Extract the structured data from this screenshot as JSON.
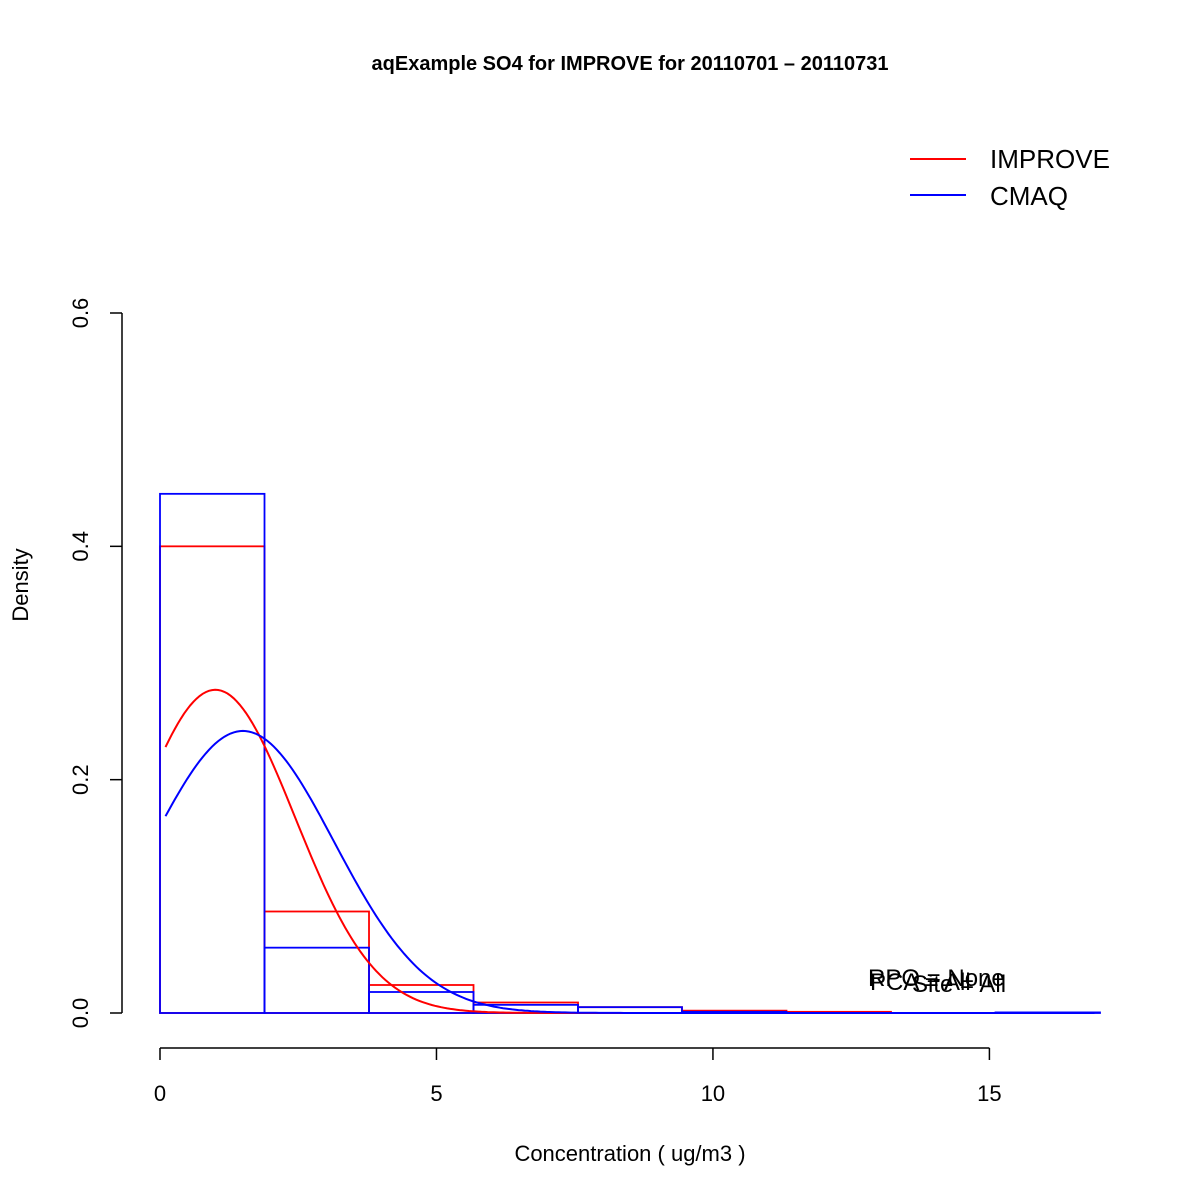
{
  "chart_data": {
    "type": "histogram",
    "title": "aqExample SO4 for IMPROVE for 20110701 – 20110731",
    "xlabel": "Concentration ( ug/m3 )",
    "ylabel": "Density",
    "xlim": [
      0,
      17
    ],
    "ylim": [
      0,
      0.6
    ],
    "x_ticks": [
      0,
      5,
      10,
      15
    ],
    "y_ticks": [
      0.0,
      0.2,
      0.4,
      0.6
    ],
    "x_tick_labels": [
      "0",
      "5",
      "10",
      "15"
    ],
    "y_tick_labels": [
      "0.0",
      "0.2",
      "0.4",
      "0.6"
    ],
    "grid": false,
    "legend": {
      "placement": "top-right",
      "entries": [
        {
          "label": "IMPROVE",
          "color": "#ff0000"
        },
        {
          "label": "CMAQ",
          "color": "#0000ff"
        }
      ]
    },
    "annotations": [
      "RPO = None",
      "PCA = All",
      "Site = All"
    ],
    "bin_edges": [
      0,
      1.89,
      3.78,
      5.67,
      7.56,
      9.44,
      11.33,
      13.22,
      15.11,
      17.0
    ],
    "series": [
      {
        "name": "IMPROVE",
        "color": "#ff0000",
        "densities": [
          0.4,
          0.087,
          0.024,
          0.009,
          0.005,
          0.002,
          0.001,
          0,
          0
        ],
        "curve": {
          "mean": 1.0,
          "sd": 1.44
        }
      },
      {
        "name": "CMAQ",
        "color": "#0000ff",
        "densities": [
          0.445,
          0.056,
          0.018,
          0.007,
          0.005,
          0.001,
          0,
          0,
          0.0005
        ],
        "curve": {
          "mean": 1.5,
          "sd": 1.65
        }
      }
    ]
  }
}
